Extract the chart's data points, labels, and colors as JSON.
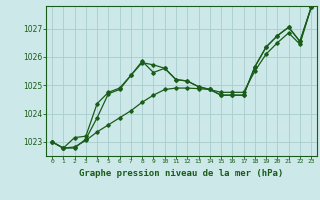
{
  "xlabel": "Graphe pression niveau de la mer (hPa)",
  "bg_color": "#cce8e8",
  "grid_color": "#aacccc",
  "line_color": "#1a5c1a",
  "ylim": [
    1022.5,
    1027.8
  ],
  "xlim": [
    -0.5,
    23.5
  ],
  "yticks": [
    1023,
    1024,
    1025,
    1026,
    1027
  ],
  "xticks": [
    0,
    1,
    2,
    3,
    4,
    5,
    6,
    7,
    8,
    9,
    10,
    11,
    12,
    13,
    14,
    15,
    16,
    17,
    18,
    19,
    20,
    21,
    22,
    23
  ],
  "s1": [
    1023.0,
    1022.78,
    1022.78,
    1023.1,
    1023.85,
    1024.7,
    1024.85,
    1025.35,
    1025.8,
    1025.72,
    1025.6,
    1025.2,
    1025.15,
    1024.95,
    1024.85,
    1024.65,
    1024.65,
    1024.65,
    1025.65,
    1026.35,
    1026.75,
    1027.05,
    1026.55,
    1027.75
  ],
  "s2": [
    1023.0,
    1022.78,
    1023.15,
    1023.2,
    1024.35,
    1024.75,
    1024.9,
    1025.35,
    1025.85,
    1025.45,
    1025.6,
    1025.2,
    1025.15,
    1024.95,
    1024.85,
    1024.65,
    1024.65,
    1024.65,
    1025.65,
    1026.35,
    1026.75,
    1027.05,
    1026.55,
    1027.75
  ],
  "s3": [
    1023.0,
    1022.78,
    1022.82,
    1023.05,
    1023.35,
    1023.6,
    1023.85,
    1024.1,
    1024.4,
    1024.65,
    1024.85,
    1024.9,
    1024.9,
    1024.88,
    1024.85,
    1024.75,
    1024.75,
    1024.75,
    1025.5,
    1026.1,
    1026.5,
    1026.85,
    1026.45,
    1027.75
  ]
}
